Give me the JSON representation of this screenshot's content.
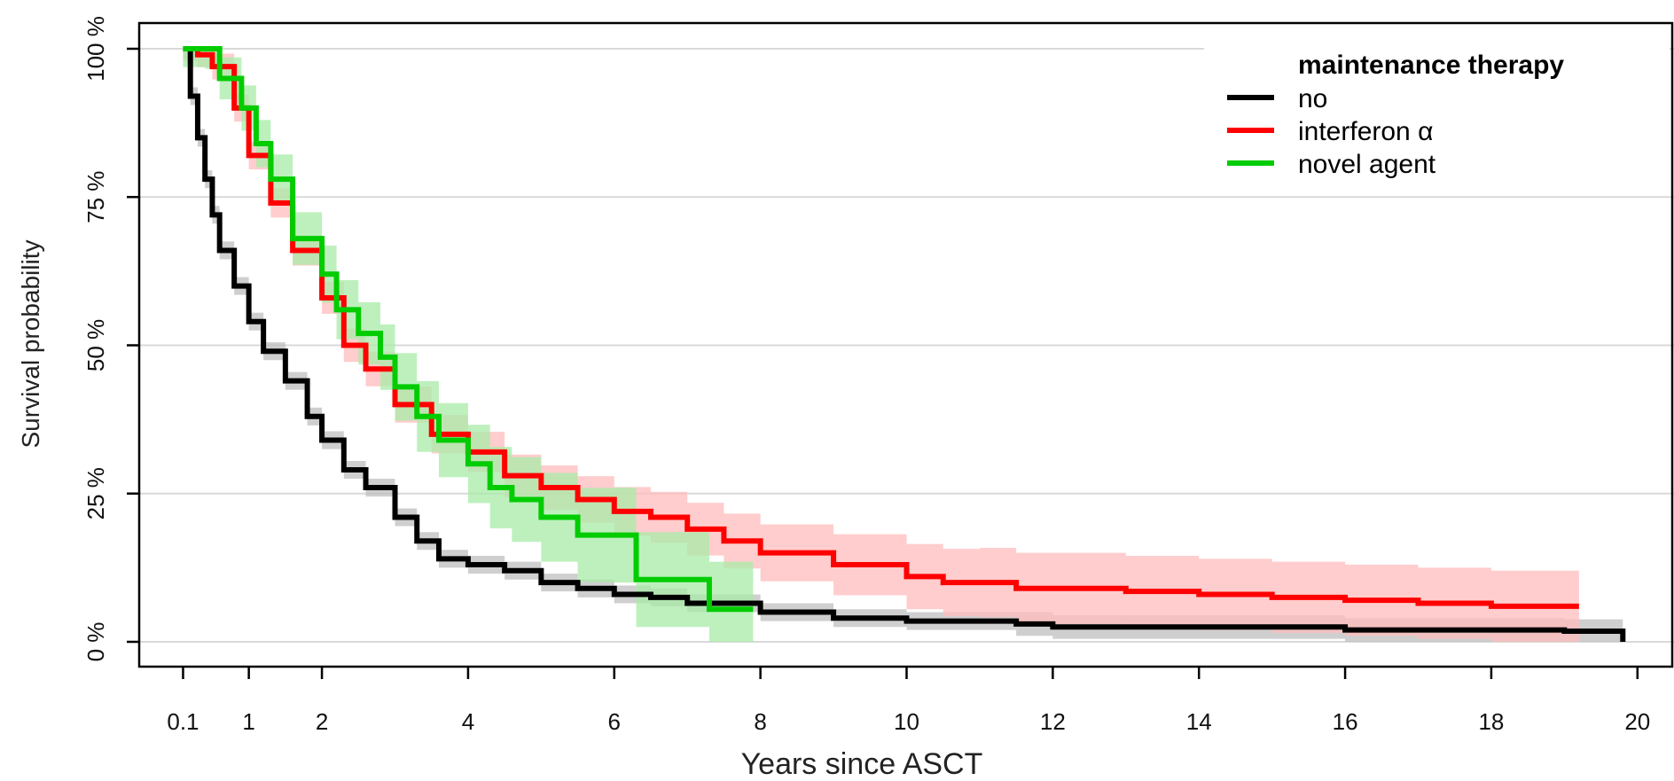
{
  "chart_data": {
    "type": "line",
    "subtype": "kaplan-meier",
    "xlabel": "Years since ASCT",
    "ylabel": "Survival probability",
    "xlim": [
      -0.5,
      20.5
    ],
    "ylim": [
      0,
      100
    ],
    "x_ticks": [
      0.1,
      1,
      2,
      4,
      6,
      8,
      10,
      12,
      14,
      16,
      18,
      20
    ],
    "x_tick_labels": [
      "0.1",
      "1",
      "2",
      "4",
      "6",
      "8",
      "10",
      "12",
      "14",
      "16",
      "18",
      "20"
    ],
    "y_ticks": [
      0,
      25,
      50,
      75,
      100
    ],
    "y_tick_labels": [
      "0 %",
      "25 %",
      "50 %",
      "75 %",
      "100 %"
    ],
    "grid": "horizontal",
    "legend": {
      "title": "maintenance therapy",
      "placement": "top-right"
    },
    "series": [
      {
        "name": "no",
        "color": "#000000",
        "band_color": "#bfbfbf",
        "x": [
          0.1,
          0.2,
          0.3,
          0.4,
          0.5,
          0.6,
          0.8,
          1.0,
          1.2,
          1.5,
          1.8,
          2.0,
          2.3,
          2.6,
          3.0,
          3.3,
          3.6,
          4.0,
          4.5,
          5.0,
          5.5,
          6.0,
          6.5,
          7.0,
          8.0,
          9.0,
          10.0,
          11.5,
          12.0,
          15.0,
          16.0,
          17.0,
          19.0,
          19.8
        ],
        "y": [
          100,
          92,
          85,
          78,
          72,
          66,
          60,
          54,
          49,
          44,
          38,
          34,
          29,
          26,
          21,
          17,
          14,
          13,
          12,
          10,
          9,
          8,
          7.5,
          6.5,
          5,
          4,
          3.5,
          3,
          2.5,
          2.5,
          2,
          2,
          1.8,
          0
        ]
      },
      {
        "name": "interferon α",
        "color": "#ff0000",
        "band_color": "#ffbcbc",
        "x": [
          0.1,
          0.3,
          0.5,
          0.8,
          1.0,
          1.3,
          1.6,
          2.0,
          2.3,
          2.6,
          3.0,
          3.5,
          4.0,
          4.5,
          5.0,
          5.5,
          6.0,
          6.5,
          7.0,
          7.5,
          8.0,
          9.0,
          10.0,
          10.5,
          11.0,
          11.5,
          12.0,
          13.0,
          14.0,
          15.0,
          16.0,
          17.0,
          18.0,
          19.2
        ],
        "y": [
          100,
          99,
          97,
          90,
          82,
          74,
          66,
          58,
          50,
          46,
          40,
          35,
          32,
          28,
          26,
          24,
          22,
          21,
          19,
          17,
          15,
          13,
          11,
          10,
          10,
          9,
          9,
          8.5,
          8,
          7.5,
          7,
          6.5,
          6,
          6
        ]
      },
      {
        "name": "novel agent",
        "color": "#00cc00",
        "band_color": "#a8eba8",
        "x": [
          0.1,
          0.4,
          0.6,
          0.9,
          1.1,
          1.3,
          1.6,
          2.0,
          2.2,
          2.5,
          2.8,
          3.0,
          3.3,
          3.6,
          4.0,
          4.3,
          4.6,
          5.0,
          5.5,
          6.0,
          6.3,
          6.5,
          7.0,
          7.3,
          7.9
        ],
        "y": [
          100,
          100,
          95,
          90,
          84,
          78,
          68,
          62,
          56,
          52,
          48,
          43,
          38,
          34,
          30,
          26,
          24,
          21,
          18,
          18,
          10.5,
          10.5,
          10.5,
          5.5,
          5.5
        ]
      }
    ]
  }
}
